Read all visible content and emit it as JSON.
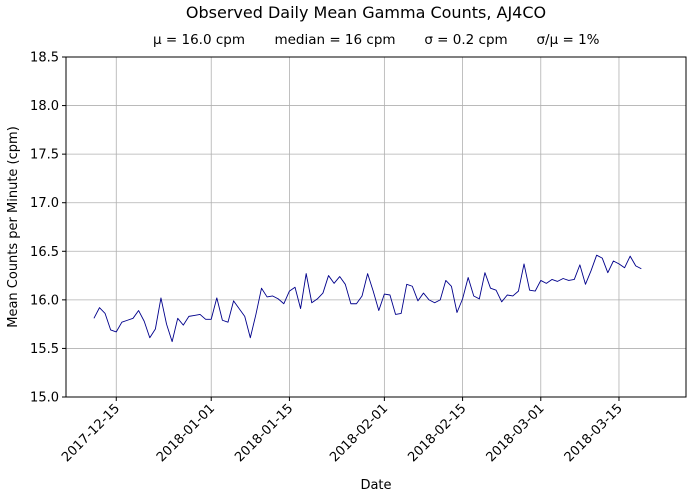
{
  "chart_data": {
    "type": "line",
    "title": "Observed Daily Mean Gamma Counts, AJ4CO",
    "stats": {
      "mean": "μ = 16.0 cpm",
      "median": "median = 16 cpm",
      "sigma": "σ = 0.2 cpm",
      "ratio": "σ/μ = 1%"
    },
    "xlabel": "Date",
    "ylabel": "Mean Counts per Minute (cpm)",
    "ylim": [
      15.0,
      18.5
    ],
    "xlim": [
      "2017-12-06",
      "2018-03-27"
    ],
    "y_ticks": [
      "15.0",
      "15.5",
      "16.0",
      "16.5",
      "17.0",
      "17.5",
      "18.0",
      "18.5"
    ],
    "x_ticks": [
      "2017-12-15",
      "2018-01-01",
      "2018-01-15",
      "2018-02-01",
      "2018-02-15",
      "2018-03-01",
      "2018-03-15"
    ],
    "grid": true,
    "line_color": "#00008b",
    "series": [
      {
        "start_date": "2017-12-11",
        "values": [
          15.81,
          15.92,
          15.86,
          15.69,
          15.67,
          15.77,
          15.79,
          15.81,
          15.89,
          15.78,
          15.61,
          15.7,
          16.02,
          15.75,
          15.57,
          15.81,
          15.74,
          15.83,
          15.84,
          15.85,
          15.8,
          15.8,
          16.02,
          15.79,
          15.77,
          15.99,
          15.91,
          15.83,
          15.61,
          15.85,
          16.12,
          16.03,
          16.04,
          16.01,
          15.96,
          16.09,
          16.13,
          15.91,
          16.27,
          15.97,
          16.01,
          16.07,
          16.25,
          16.17,
          16.24,
          16.16,
          15.96,
          15.96,
          16.04,
          16.27,
          16.09,
          15.89,
          16.06,
          16.05,
          15.85,
          15.86,
          16.16,
          16.14,
          15.99,
          16.07,
          16.0,
          15.97,
          16.0,
          16.2,
          16.14,
          15.87,
          16.01,
          16.23,
          16.04,
          16.01,
          16.28,
          16.12,
          16.1,
          15.98,
          16.05,
          16.04,
          16.09,
          16.37,
          16.1,
          16.09,
          16.2,
          16.17,
          16.21,
          16.19,
          16.22,
          16.2,
          16.21,
          16.36,
          16.16,
          16.3,
          16.46,
          16.43,
          16.28,
          16.4,
          16.37,
          16.33,
          16.45,
          16.35,
          16.32
        ]
      }
    ]
  }
}
